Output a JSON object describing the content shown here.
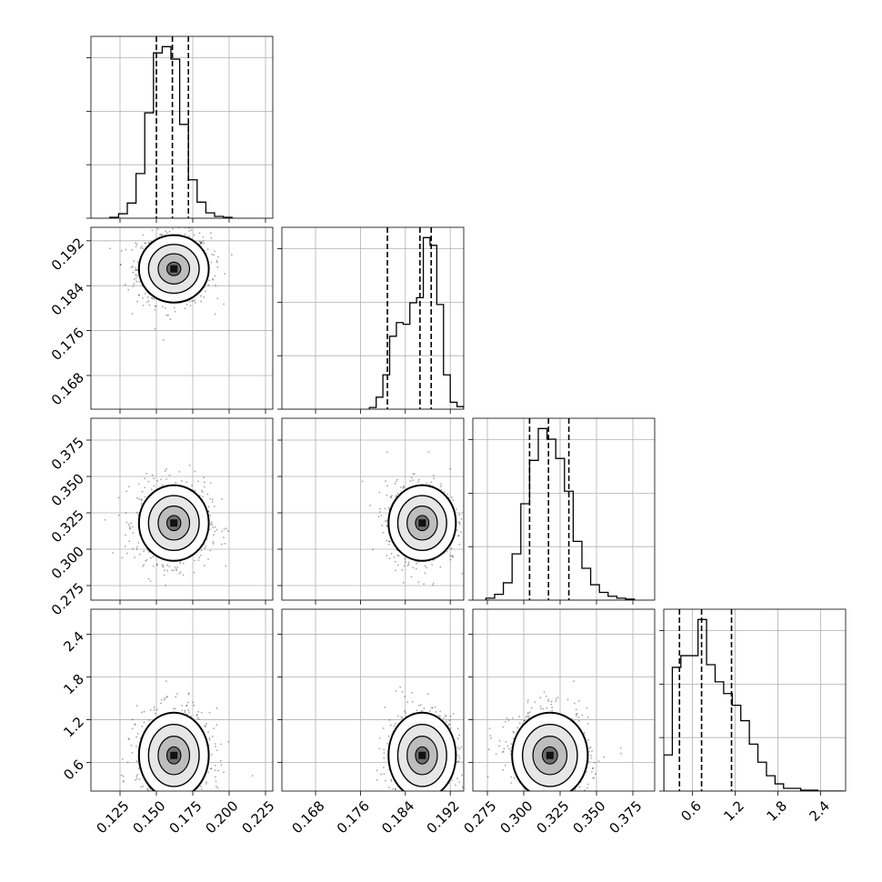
{
  "chart_data": {
    "type": "corner",
    "grid": true,
    "parameters": [
      {
        "range": [
          0.105,
          0.23
        ],
        "ticks": [
          0.125,
          0.15,
          0.175,
          0.2,
          0.225
        ],
        "tick_labels": [
          "0.125",
          "0.150",
          "0.175",
          "0.200",
          "0.225"
        ],
        "quantiles": [
          0.15,
          0.161,
          0.172
        ],
        "hist": {
          "edges": [
            0.118,
            0.124,
            0.13,
            0.136,
            0.142,
            0.148,
            0.154,
            0.16,
            0.166,
            0.172,
            0.178,
            0.184,
            0.19,
            0.196,
            0.202
          ],
          "counts": [
            1,
            5,
            17,
            50,
            118,
            185,
            192,
            178,
            105,
            43,
            18,
            6,
            2,
            1
          ]
        },
        "mode": 0.162,
        "spread": 0.012
      },
      {
        "range": [
          0.162,
          0.1944
        ],
        "ticks": [
          0.168,
          0.176,
          0.184,
          0.192
        ],
        "tick_labels": [
          "0.168",
          "0.176",
          "0.184",
          "0.192"
        ],
        "quantiles": [
          0.1808,
          0.1866,
          0.1886
        ],
        "hist": {
          "edges": [
            0.1776,
            0.1788,
            0.18,
            0.1812,
            0.1824,
            0.1836,
            0.1848,
            0.186,
            0.1872,
            0.1884,
            0.1896,
            0.1908,
            0.192,
            0.1932,
            0.1944
          ],
          "counts": [
            2,
            14,
            40,
            85,
            101,
            99,
            124,
            130,
            200,
            191,
            122,
            40,
            8,
            3
          ]
        },
        "mode": 0.187,
        "spread": 0.003
      },
      {
        "range": [
          0.265,
          0.39
        ],
        "ticks": [
          0.275,
          0.3,
          0.325,
          0.35,
          0.375
        ],
        "tick_labels": [
          "0.275",
          "0.300",
          "0.325",
          "0.350",
          "0.375"
        ],
        "quantiles": [
          0.304,
          0.317,
          0.331
        ],
        "hist": {
          "edges": [
            0.274,
            0.28,
            0.286,
            0.292,
            0.298,
            0.304,
            0.31,
            0.316,
            0.322,
            0.328,
            0.334,
            0.34,
            0.346,
            0.352,
            0.358,
            0.364,
            0.37,
            0.376
          ],
          "counts": [
            2,
            6,
            18,
            48,
            100,
            145,
            178,
            167,
            147,
            113,
            61,
            33,
            16,
            8,
            4,
            2,
            1
          ]
        },
        "mode": 0.318,
        "spread": 0.013
      },
      {
        "range": [
          0.2,
          2.75
        ],
        "ticks": [
          0.6,
          1.2,
          1.8,
          2.4
        ],
        "tick_labels": [
          "0.6",
          "1.2",
          "1.8",
          "2.4"
        ],
        "quantiles": [
          0.42,
          0.73,
          1.15
        ],
        "hist": {
          "edges": [
            0.2,
            0.32,
            0.44,
            0.56,
            0.68,
            0.8,
            0.92,
            1.04,
            1.16,
            1.28,
            1.4,
            1.52,
            1.64,
            1.76,
            1.88,
            2.0,
            2.12,
            2.24,
            2.36,
            2.48,
            2.6,
            2.72
          ],
          "counts": [
            40,
            137,
            150,
            150,
            190,
            140,
            121,
            108,
            95,
            78,
            52,
            32,
            17,
            8,
            3,
            3,
            1,
            1,
            0,
            0,
            0
          ]
        },
        "mode": 0.7,
        "spread": 0.3
      }
    ]
  }
}
